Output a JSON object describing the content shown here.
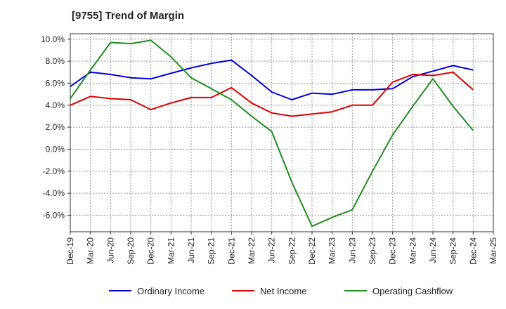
{
  "chart_data": {
    "type": "line",
    "title": "[9755]  Trend of Margin",
    "xlabel": "",
    "ylabel": "",
    "categories": [
      "Dec-19",
      "Mar-20",
      "Jun-20",
      "Sep-20",
      "Dec-20",
      "Mar-21",
      "Jun-21",
      "Sep-21",
      "Dec-21",
      "Mar-22",
      "Jun-22",
      "Sep-22",
      "Dec-22",
      "Mar-23",
      "Jun-23",
      "Sep-23",
      "Dec-23",
      "Mar-24",
      "Jun-24",
      "Sep-24",
      "Dec-24",
      "Mar-25"
    ],
    "y_ticks": [
      "10.0%",
      "8.0%",
      "6.0%",
      "4.0%",
      "2.0%",
      "0.0%",
      "-2.0%",
      "-4.0%",
      "-6.0%"
    ],
    "ylim": [
      -7.5,
      10.5
    ],
    "grid": true,
    "legend_position": "bottom",
    "series": [
      {
        "name": "Ordinary Income",
        "color": "#0000dd",
        "values": [
          5.7,
          7.0,
          6.8,
          6.5,
          6.4,
          6.9,
          7.4,
          7.8,
          8.1,
          6.7,
          5.2,
          4.5,
          5.1,
          5.0,
          5.4,
          5.4,
          5.5,
          6.6,
          7.1,
          7.6,
          7.2,
          null
        ]
      },
      {
        "name": "Net Income",
        "color": "#dd0000",
        "values": [
          4.0,
          4.8,
          4.6,
          4.5,
          3.6,
          4.2,
          4.7,
          4.7,
          5.6,
          4.2,
          3.3,
          3.0,
          3.2,
          3.4,
          4.0,
          4.0,
          6.1,
          6.8,
          6.7,
          7.0,
          5.4,
          null
        ]
      },
      {
        "name": "Operating Cashflow",
        "color": "#228b22",
        "values": [
          4.6,
          7.2,
          9.7,
          9.6,
          9.9,
          8.4,
          6.5,
          5.5,
          4.5,
          3.0,
          1.6,
          -3.0,
          -7.0,
          -6.2,
          -5.5,
          -2.0,
          1.3,
          3.9,
          6.4,
          3.9,
          1.7,
          null
        ]
      }
    ]
  }
}
